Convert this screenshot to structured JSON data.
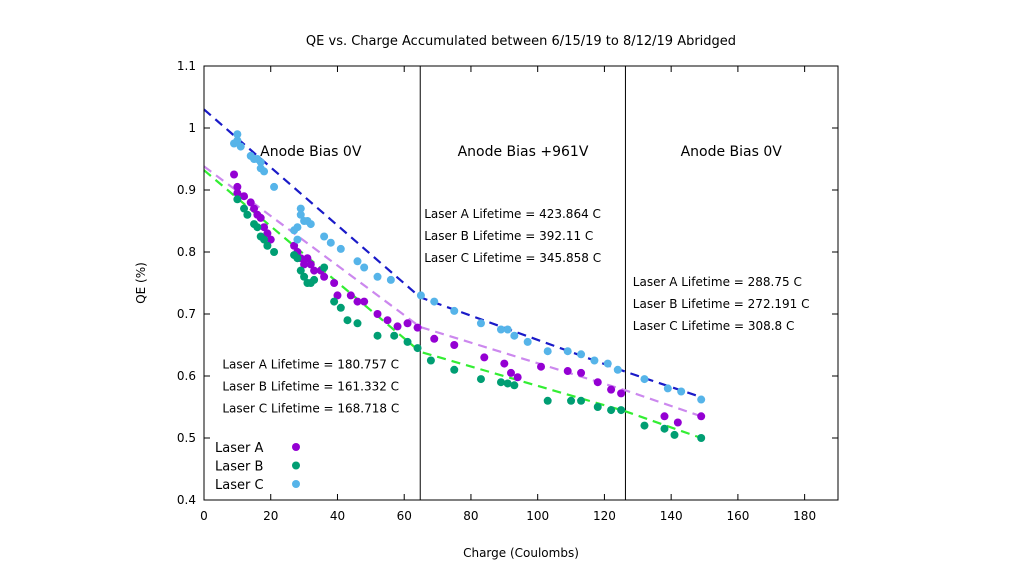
{
  "chart_data": {
    "type": "scatter",
    "title": "QE vs. Charge Accumulated between 6/15/19 to 8/12/19 Abridged",
    "xlabel": "Charge (Coulombs)",
    "ylabel": "QE (%)",
    "xlim": [
      0,
      190
    ],
    "ylim": [
      0.4,
      1.1
    ],
    "xticks": [
      0,
      20,
      40,
      60,
      80,
      100,
      120,
      140,
      160,
      180
    ],
    "yticks": [
      0.4,
      0.5,
      0.6,
      0.7,
      0.8,
      0.9,
      1,
      1.1
    ],
    "xtick_labels": [
      "0",
      "20",
      "40",
      "60",
      "80",
      "100",
      "120",
      "140",
      "160",
      "180"
    ],
    "ytick_labels": [
      "0.4",
      "0.5",
      "0.6",
      "0.7",
      "0.8",
      "0.9",
      "1",
      "1.1"
    ],
    "grid": false,
    "legend_position": "bottom-left",
    "vlines": [
      64.8,
      126.3
    ],
    "regions": [
      {
        "label": "Anode Bias 0V",
        "x_center": 32,
        "y": 0.955
      },
      {
        "label": "Anode Bias +961V",
        "x_center": 95.6,
        "y": 0.955
      },
      {
        "label": "Anode Bias 0V",
        "x_center": 158,
        "y": 0.955
      }
    ],
    "annotations": [
      {
        "lines": [
          "Laser A Lifetime = 423.864 C",
          "Laser B Lifetime = 392.11 C",
          "Laser C Lifetime = 345.858 C"
        ],
        "x": 66,
        "y": 0.855
      },
      {
        "lines": [
          "Laser A Lifetime = 288.75 C",
          "Laser B Lifetime = 272.191 C",
          "Laser C Lifetime = 308.8 C"
        ],
        "x": 128.5,
        "y": 0.745
      },
      {
        "lines": [
          "Laser A Lifetime = 180.757 C",
          "Laser B Lifetime = 161.332 C",
          "Laser C Lifetime = 168.718 C"
        ],
        "x": 5.5,
        "y": 0.612
      }
    ],
    "series": [
      {
        "name": "Laser A",
        "color": "#9400d3",
        "fit_color": "#cc88ee",
        "fit": [
          [
            0,
            0.938
          ],
          [
            64.8,
            0.679
          ],
          [
            126.3,
            0.577
          ],
          [
            149,
            0.535
          ]
        ],
        "points": [
          [
            9,
            0.925
          ],
          [
            10,
            0.905
          ],
          [
            10,
            0.895
          ],
          [
            12,
            0.89
          ],
          [
            14,
            0.88
          ],
          [
            15,
            0.87
          ],
          [
            16,
            0.86
          ],
          [
            17,
            0.855
          ],
          [
            18,
            0.84
          ],
          [
            19,
            0.83
          ],
          [
            20,
            0.82
          ],
          [
            27,
            0.81
          ],
          [
            28,
            0.8
          ],
          [
            29,
            0.79
          ],
          [
            30,
            0.78
          ],
          [
            31,
            0.79
          ],
          [
            32,
            0.78
          ],
          [
            33,
            0.77
          ],
          [
            35,
            0.77
          ],
          [
            36,
            0.76
          ],
          [
            39,
            0.75
          ],
          [
            40,
            0.73
          ],
          [
            44,
            0.73
          ],
          [
            46,
            0.72
          ],
          [
            48,
            0.72
          ],
          [
            52,
            0.7
          ],
          [
            55,
            0.69
          ],
          [
            58,
            0.68
          ],
          [
            61,
            0.685
          ],
          [
            64,
            0.678
          ],
          [
            69,
            0.66
          ],
          [
            75,
            0.65
          ],
          [
            84,
            0.63
          ],
          [
            90,
            0.62
          ],
          [
            92,
            0.605
          ],
          [
            94,
            0.598
          ],
          [
            101,
            0.615
          ],
          [
            109,
            0.608
          ],
          [
            113,
            0.605
          ],
          [
            118,
            0.59
          ],
          [
            122,
            0.578
          ],
          [
            125,
            0.572
          ],
          [
            138,
            0.535
          ],
          [
            142,
            0.525
          ],
          [
            149,
            0.535
          ]
        ]
      },
      {
        "name": "Laser B",
        "color": "#009e73",
        "fit_color": "#33ee33",
        "fit": [
          [
            0,
            0.932
          ],
          [
            64.8,
            0.639
          ],
          [
            126.3,
            0.543
          ],
          [
            149,
            0.5
          ]
        ],
        "points": [
          [
            10,
            0.885
          ],
          [
            12,
            0.87
          ],
          [
            13,
            0.86
          ],
          [
            15,
            0.845
          ],
          [
            16,
            0.84
          ],
          [
            17,
            0.825
          ],
          [
            18,
            0.82
          ],
          [
            19,
            0.81
          ],
          [
            21,
            0.8
          ],
          [
            27,
            0.795
          ],
          [
            28,
            0.79
          ],
          [
            29,
            0.77
          ],
          [
            30,
            0.76
          ],
          [
            31,
            0.75
          ],
          [
            32,
            0.75
          ],
          [
            33,
            0.755
          ],
          [
            36,
            0.775
          ],
          [
            39,
            0.72
          ],
          [
            41,
            0.71
          ],
          [
            43,
            0.69
          ],
          [
            46,
            0.685
          ],
          [
            52,
            0.665
          ],
          [
            57,
            0.665
          ],
          [
            61,
            0.655
          ],
          [
            64,
            0.645
          ],
          [
            68,
            0.625
          ],
          [
            75,
            0.61
          ],
          [
            83,
            0.595
          ],
          [
            89,
            0.59
          ],
          [
            91,
            0.588
          ],
          [
            93,
            0.585
          ],
          [
            103,
            0.56
          ],
          [
            110,
            0.56
          ],
          [
            113,
            0.56
          ],
          [
            118,
            0.55
          ],
          [
            122,
            0.545
          ],
          [
            125,
            0.545
          ],
          [
            132,
            0.52
          ],
          [
            138,
            0.515
          ],
          [
            141,
            0.505
          ],
          [
            149,
            0.5
          ]
        ]
      },
      {
        "name": "Laser C",
        "color": "#56b4e9",
        "fit_color": "#1a1ac8",
        "fit": [
          [
            0,
            1.03
          ],
          [
            64.8,
            0.727
          ],
          [
            126.3,
            0.607
          ],
          [
            149,
            0.566
          ]
        ],
        "points": [
          [
            9,
            0.975
          ],
          [
            10,
            0.99
          ],
          [
            10,
            0.98
          ],
          [
            11,
            0.97
          ],
          [
            14,
            0.955
          ],
          [
            15,
            0.95
          ],
          [
            16,
            0.95
          ],
          [
            17,
            0.945
          ],
          [
            17,
            0.935
          ],
          [
            18,
            0.93
          ],
          [
            21,
            0.905
          ],
          [
            27,
            0.835
          ],
          [
            28,
            0.84
          ],
          [
            28,
            0.82
          ],
          [
            29,
            0.87
          ],
          [
            29,
            0.86
          ],
          [
            30,
            0.85
          ],
          [
            31,
            0.85
          ],
          [
            32,
            0.845
          ],
          [
            36,
            0.825
          ],
          [
            38,
            0.815
          ],
          [
            41,
            0.805
          ],
          [
            46,
            0.785
          ],
          [
            48,
            0.775
          ],
          [
            52,
            0.76
          ],
          [
            56,
            0.755
          ],
          [
            65,
            0.73
          ],
          [
            69,
            0.72
          ],
          [
            75,
            0.705
          ],
          [
            83,
            0.685
          ],
          [
            89,
            0.675
          ],
          [
            91,
            0.675
          ],
          [
            93,
            0.665
          ],
          [
            97,
            0.655
          ],
          [
            103,
            0.64
          ],
          [
            109,
            0.64
          ],
          [
            113,
            0.635
          ],
          [
            117,
            0.625
          ],
          [
            121,
            0.62
          ],
          [
            124,
            0.61
          ],
          [
            132,
            0.595
          ],
          [
            139,
            0.58
          ],
          [
            143,
            0.575
          ],
          [
            149,
            0.562
          ]
        ]
      }
    ]
  }
}
